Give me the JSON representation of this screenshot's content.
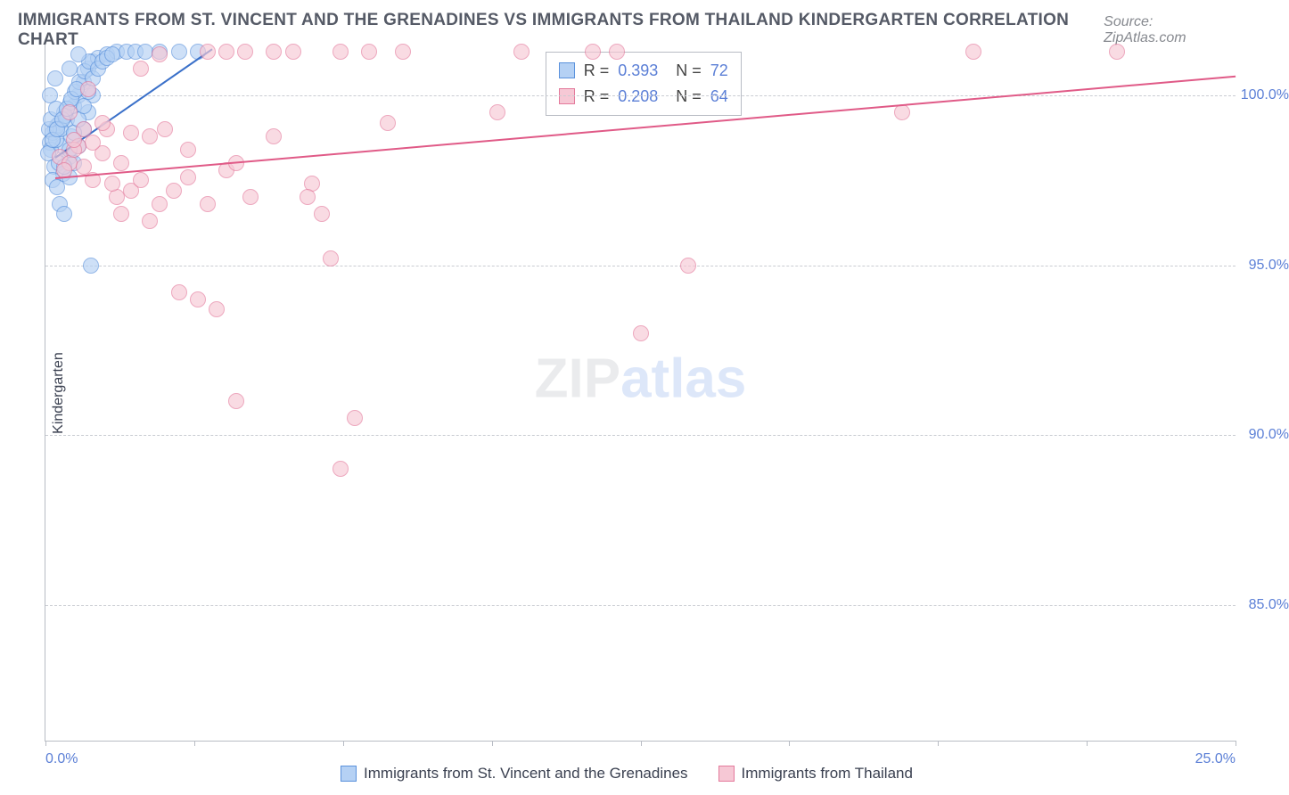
{
  "title": "IMMIGRANTS FROM ST. VINCENT AND THE GRENADINES VS IMMIGRANTS FROM THAILAND KINDERGARTEN CORRELATION CHART",
  "source": "Source: ZipAtlas.com",
  "watermark_zip": "ZIP",
  "watermark_atlas": "atlas",
  "y_label": "Kindergarten",
  "chart": {
    "type": "scatter",
    "background_color": "#ffffff",
    "grid_color": "#c9ccd2",
    "axis_color": "#b8bcc4",
    "tick_color": "#5b7fd6",
    "tick_fontsize": 16,
    "marker_size": 18,
    "marker_opacity": 0.65,
    "xlim": [
      0,
      25
    ],
    "ylim": [
      81,
      101.5
    ],
    "x_ticks": [
      0,
      3.125,
      6.25,
      9.375,
      12.5,
      15.625,
      18.75,
      21.875,
      25
    ],
    "x_min_label": "0.0%",
    "x_max_label": "25.0%",
    "y_ticks": [
      {
        "value": 85,
        "label": "85.0%"
      },
      {
        "value": 90,
        "label": "90.0%"
      },
      {
        "value": 95,
        "label": "95.0%"
      },
      {
        "value": 100,
        "label": "100.0%"
      }
    ]
  },
  "stats_legend": {
    "r_label": "R =",
    "n_label": "N =",
    "rows": [
      {
        "swatch_fill": "#b5d1f4",
        "swatch_border": "#5b92dc",
        "r": "0.393",
        "n": "72"
      },
      {
        "swatch_fill": "#f6c8d5",
        "swatch_border": "#e47a9c",
        "r": "0.208",
        "n": "64"
      }
    ]
  },
  "series": [
    {
      "name": "Immigrants from St. Vincent and the Grenadines",
      "fill": "#b5d1f4",
      "border": "#5b92dc",
      "trend_color": "#3a70c9",
      "trend": {
        "x1": 0.2,
        "y1": 98.2,
        "x2": 3.5,
        "y2": 101.4
      },
      "points": [
        [
          0.2,
          99.0
        ],
        [
          0.3,
          99.2
        ],
        [
          0.1,
          98.6
        ],
        [
          0.4,
          99.5
        ],
        [
          0.5,
          98.2
        ],
        [
          0.15,
          98.9
        ],
        [
          0.6,
          99.7
        ],
        [
          0.7,
          100.0
        ],
        [
          0.25,
          99.1
        ],
        [
          0.35,
          98.5
        ],
        [
          0.45,
          99.3
        ],
        [
          0.55,
          98.8
        ],
        [
          0.8,
          100.4
        ],
        [
          0.9,
          100.8
        ],
        [
          1.0,
          101.0
        ],
        [
          1.1,
          101.1
        ],
        [
          1.3,
          101.2
        ],
        [
          1.5,
          101.3
        ],
        [
          1.7,
          101.3
        ],
        [
          1.9,
          101.3
        ],
        [
          2.1,
          101.3
        ],
        [
          2.4,
          101.3
        ],
        [
          2.8,
          101.3
        ],
        [
          3.2,
          101.3
        ],
        [
          0.18,
          97.9
        ],
        [
          0.28,
          98.0
        ],
        [
          0.38,
          97.7
        ],
        [
          0.12,
          98.4
        ],
        [
          0.22,
          98.7
        ],
        [
          0.32,
          99.0
        ],
        [
          0.42,
          99.4
        ],
        [
          0.52,
          99.8
        ],
        [
          0.62,
          100.1
        ],
        [
          0.72,
          100.4
        ],
        [
          0.82,
          100.7
        ],
        [
          0.92,
          101.0
        ],
        [
          0.15,
          97.5
        ],
        [
          0.25,
          97.3
        ],
        [
          0.5,
          97.6
        ],
        [
          0.08,
          99.0
        ],
        [
          0.05,
          98.3
        ],
        [
          0.6,
          98.0
        ],
        [
          0.7,
          98.5
        ],
        [
          0.8,
          99.0
        ],
        [
          0.9,
          99.5
        ],
        [
          1.0,
          100.0
        ],
        [
          0.3,
          96.8
        ],
        [
          0.4,
          96.5
        ],
        [
          0.1,
          100.0
        ],
        [
          0.2,
          100.5
        ],
        [
          0.5,
          100.8
        ],
        [
          0.7,
          101.2
        ],
        [
          0.12,
          99.3
        ],
        [
          0.22,
          99.6
        ],
        [
          0.95,
          95.0
        ],
        [
          0.4,
          97.9
        ],
        [
          0.5,
          98.4
        ],
        [
          0.6,
          98.9
        ],
        [
          0.7,
          99.3
        ],
        [
          0.8,
          99.7
        ],
        [
          0.9,
          100.1
        ],
        [
          1.0,
          100.5
        ],
        [
          1.1,
          100.8
        ],
        [
          1.2,
          101.0
        ],
        [
          1.3,
          101.1
        ],
        [
          1.4,
          101.2
        ],
        [
          0.15,
          98.7
        ],
        [
          0.25,
          99.0
        ],
        [
          0.35,
          99.3
        ],
        [
          0.45,
          99.6
        ],
        [
          0.55,
          99.9
        ],
        [
          0.65,
          100.2
        ]
      ]
    },
    {
      "name": "Immigrants from Thailand",
      "fill": "#f6c8d5",
      "border": "#e47a9c",
      "trend_color": "#e05a87",
      "trend": {
        "x1": 0.2,
        "y1": 97.6,
        "x2": 25,
        "y2": 100.6
      },
      "points": [
        [
          0.3,
          98.2
        ],
        [
          0.5,
          98.0
        ],
        [
          0.7,
          98.5
        ],
        [
          0.4,
          97.8
        ],
        [
          0.6,
          98.4
        ],
        [
          0.8,
          99.0
        ],
        [
          1.0,
          97.5
        ],
        [
          1.2,
          98.3
        ],
        [
          1.6,
          98.0
        ],
        [
          0.5,
          99.5
        ],
        [
          0.9,
          100.2
        ],
        [
          1.3,
          99.0
        ],
        [
          1.8,
          97.2
        ],
        [
          2.2,
          98.8
        ],
        [
          2.5,
          99.0
        ],
        [
          3.0,
          97.6
        ],
        [
          3.8,
          101.3
        ],
        [
          4.3,
          97.0
        ],
        [
          4.8,
          98.8
        ],
        [
          5.2,
          101.3
        ],
        [
          5.6,
          97.4
        ],
        [
          6.0,
          95.2
        ],
        [
          6.2,
          101.3
        ],
        [
          6.8,
          101.3
        ],
        [
          7.2,
          99.2
        ],
        [
          7.5,
          101.3
        ],
        [
          9.5,
          99.5
        ],
        [
          10.0,
          101.3
        ],
        [
          11.5,
          101.3
        ],
        [
          12.5,
          93.0
        ],
        [
          13.5,
          95.0
        ],
        [
          18.0,
          99.5
        ],
        [
          19.5,
          101.3
        ],
        [
          22.5,
          101.3
        ],
        [
          2.4,
          96.8
        ],
        [
          2.8,
          94.2
        ],
        [
          3.2,
          94.0
        ],
        [
          3.6,
          93.7
        ],
        [
          4.0,
          91.0
        ],
        [
          6.2,
          89.0
        ],
        [
          12.0,
          101.3
        ],
        [
          3.4,
          96.8
        ],
        [
          5.8,
          96.5
        ],
        [
          3.8,
          97.8
        ],
        [
          1.5,
          97.0
        ],
        [
          2.0,
          97.5
        ],
        [
          2.2,
          96.3
        ],
        [
          2.7,
          97.2
        ],
        [
          3.0,
          98.4
        ],
        [
          4.0,
          98.0
        ],
        [
          0.6,
          98.7
        ],
        [
          0.8,
          97.9
        ],
        [
          1.0,
          98.6
        ],
        [
          1.2,
          99.2
        ],
        [
          1.4,
          97.4
        ],
        [
          1.6,
          96.5
        ],
        [
          1.8,
          98.9
        ],
        [
          2.0,
          100.8
        ],
        [
          2.4,
          101.2
        ],
        [
          3.4,
          101.3
        ],
        [
          4.2,
          101.3
        ],
        [
          4.8,
          101.3
        ],
        [
          5.5,
          97.0
        ],
        [
          6.5,
          90.5
        ]
      ]
    }
  ],
  "bottom_legend": {
    "items": [
      {
        "swatch_fill": "#b5d1f4",
        "swatch_border": "#5b92dc",
        "label": "Immigrants from St. Vincent and the Grenadines"
      },
      {
        "swatch_fill": "#f6c8d5",
        "swatch_border": "#e47a9c",
        "label": "Immigrants from Thailand"
      }
    ]
  }
}
